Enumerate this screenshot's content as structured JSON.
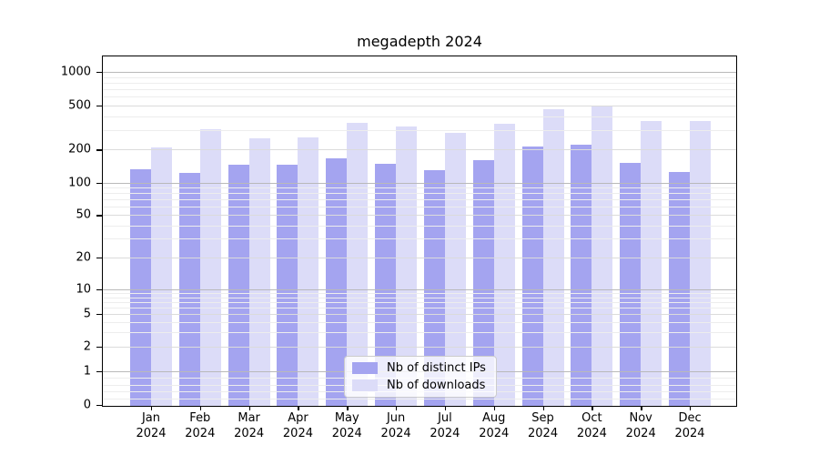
{
  "chart_data": {
    "type": "bar",
    "title": "megadepth 2024",
    "yscale": "symlog",
    "grid": true,
    "legend_position": "lower center",
    "categories": [
      "Jan",
      "Feb",
      "Mar",
      "Apr",
      "May",
      "Jun",
      "Jul",
      "Aug",
      "Sep",
      "Oct",
      "Nov",
      "Dec"
    ],
    "x_tick_second_line": "2024",
    "y_ticks": [
      0,
      1,
      2,
      5,
      10,
      20,
      50,
      100,
      200,
      500,
      1000
    ],
    "ylim": [
      0,
      1400
    ],
    "series": [
      {
        "name": "Nb of distinct IPs",
        "color": "#a4a4f0",
        "values": [
          133,
          122,
          146,
          146,
          166,
          149,
          130,
          160,
          213,
          220,
          151,
          125
        ]
      },
      {
        "name": "Nb of downloads",
        "color": "#dcdcf8",
        "values": [
          207,
          305,
          252,
          255,
          345,
          325,
          285,
          340,
          465,
          490,
          360,
          360
        ]
      }
    ]
  },
  "colors": {
    "grid_major": "#b9b9b9",
    "grid_mid": "#dbdbdb",
    "grid_minor": "#ededed",
    "axis": "#000000",
    "background": "#ffffff"
  }
}
